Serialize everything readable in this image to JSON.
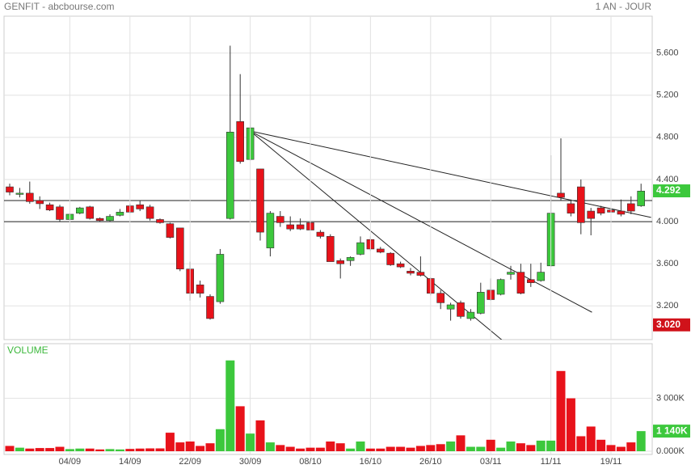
{
  "chart_data": [
    {
      "type": "candlestick",
      "title": "GENFIT - abcbourse.com",
      "subtitle": "1 AN - JOUR",
      "categories": [
        null,
        null,
        null,
        null,
        null,
        null,
        "04/09",
        null,
        null,
        null,
        null,
        null,
        "14/09",
        null,
        null,
        null,
        null,
        null,
        "22/09",
        null,
        null,
        null,
        null,
        null,
        "30/09",
        null,
        null,
        null,
        null,
        null,
        "08/10",
        null,
        null,
        null,
        null,
        null,
        "16/10",
        null,
        null,
        null,
        null,
        null,
        "26/10",
        null,
        null,
        null,
        null,
        null,
        "03/11",
        null,
        null,
        null,
        null,
        null,
        "11/11",
        null,
        null,
        null,
        null,
        null,
        "19/11",
        null,
        null,
        null
      ],
      "open": [
        4.33,
        4.27,
        4.27,
        4.2,
        4.16,
        4.14,
        4.02,
        4.08,
        4.14,
        4.03,
        4.01,
        4.06,
        4.15,
        4.16,
        4.14,
        4.02,
        3.98,
        3.94,
        3.55,
        3.4,
        3.29,
        3.24,
        4.03,
        4.95,
        4.59,
        4.5,
        3.75,
        4.05,
        3.97,
        3.97,
        3.99,
        3.9,
        3.86,
        3.63,
        3.63,
        3.69,
        3.83,
        3.74,
        3.7,
        3.6,
        3.53,
        3.52,
        3.46,
        3.32,
        3.17,
        3.23,
        3.08,
        3.13,
        3.35,
        3.31,
        3.5,
        3.52,
        3.45,
        3.44,
        3.58,
        4.27,
        4.17,
        4.33,
        4.1,
        4.13,
        4.11,
        4.1,
        4.17,
        4.15
      ],
      "high": [
        4.36,
        4.32,
        4.38,
        4.24,
        4.18,
        4.16,
        4.08,
        4.14,
        4.15,
        4.04,
        4.07,
        4.12,
        4.17,
        4.2,
        4.16,
        4.03,
        3.99,
        3.94,
        3.62,
        3.44,
        3.31,
        3.74,
        5.67,
        5.4,
        5.2,
        4.5,
        4.1,
        4.1,
        4.05,
        4.03,
        4.05,
        3.92,
        3.88,
        3.65,
        3.67,
        3.86,
        3.86,
        3.76,
        3.71,
        3.62,
        3.56,
        3.67,
        3.47,
        3.35,
        3.23,
        3.25,
        3.17,
        3.42,
        3.46,
        3.46,
        3.58,
        3.6,
        3.6,
        3.61,
        4.63,
        4.79,
        4.21,
        4.4,
        4.13,
        4.15,
        4.13,
        4.21,
        4.24,
        4.36
      ],
      "low": [
        4.25,
        4.23,
        4.17,
        4.12,
        4.1,
        4.0,
        4.01,
        4.07,
        4.02,
        4.0,
        4.0,
        4.05,
        4.08,
        4.1,
        4.01,
        3.98,
        3.84,
        3.53,
        3.25,
        3.28,
        3.07,
        3.22,
        4.02,
        4.55,
        4.58,
        3.82,
        3.67,
        3.95,
        3.91,
        3.92,
        3.88,
        3.84,
        3.62,
        3.46,
        3.58,
        3.68,
        3.72,
        3.7,
        3.58,
        3.56,
        3.49,
        3.48,
        3.3,
        3.17,
        3.06,
        3.08,
        3.06,
        3.12,
        3.25,
        3.3,
        3.45,
        3.31,
        3.38,
        3.43,
        3.57,
        4.2,
        4.05,
        3.88,
        3.87,
        4.06,
        4.06,
        4.05,
        4.07,
        4.14
      ],
      "close": [
        4.28,
        4.27,
        4.19,
        4.17,
        4.11,
        4.02,
        4.07,
        4.13,
        4.03,
        4.01,
        4.05,
        4.09,
        4.09,
        4.12,
        4.03,
        3.99,
        3.85,
        3.55,
        3.32,
        3.32,
        3.08,
        3.69,
        4.85,
        4.57,
        4.89,
        3.9,
        4.08,
        3.99,
        3.93,
        3.93,
        3.92,
        3.86,
        3.62,
        3.6,
        3.66,
        3.8,
        3.74,
        3.71,
        3.59,
        3.57,
        3.51,
        3.49,
        3.32,
        3.23,
        3.21,
        3.1,
        3.14,
        3.33,
        3.26,
        3.45,
        3.52,
        3.32,
        3.42,
        3.52,
        4.08,
        4.23,
        4.08,
        3.99,
        4.03,
        4.08,
        4.09,
        4.07,
        4.1,
        4.29
      ],
      "up_color": "#3cc83c",
      "down_color": "#e8121a",
      "ylim": [
        2.88,
        5.95
      ],
      "yticks": [
        {
          "value": 3.2,
          "label": "3.200"
        },
        {
          "value": 3.6,
          "label": "3.600"
        },
        {
          "value": 4.0,
          "label": "4.000"
        },
        {
          "value": 4.4,
          "label": "4.400"
        },
        {
          "value": 4.8,
          "label": "4.800"
        },
        {
          "value": 5.2,
          "label": "5.200"
        },
        {
          "value": 5.6,
          "label": "5.600"
        }
      ],
      "grid": true,
      "hlines": [
        4.2,
        4.0
      ],
      "trendlines": [
        {
          "from": [
            24,
            4.86
          ],
          "to": [
            64,
            4.04
          ]
        },
        {
          "from": [
            24,
            4.86
          ],
          "to": [
            58.1,
            3.14
          ]
        },
        {
          "from": [
            24,
            4.86
          ],
          "to": [
            49.2,
            2.87
          ]
        }
      ],
      "price_markers": [
        {
          "value": 4.292,
          "color": "#3cc83c"
        },
        {
          "value": 3.02,
          "label": "3.020",
          "color": "#d0121a"
        }
      ]
    },
    {
      "type": "bar",
      "title": "VOLUME",
      "values": [
        300,
        200,
        150,
        180,
        180,
        250,
        120,
        150,
        150,
        100,
        120,
        100,
        130,
        150,
        160,
        160,
        1050,
        500,
        550,
        300,
        450,
        1250,
        5150,
        2550,
        1000,
        1750,
        500,
        350,
        250,
        150,
        200,
        200,
        550,
        450,
        150,
        550,
        150,
        150,
        250,
        250,
        200,
        300,
        350,
        400,
        550,
        900,
        250,
        250,
        650,
        200,
        550,
        450,
        350,
        600,
        600,
        4550,
        3000,
        850,
        1400,
        650,
        350,
        250,
        500,
        1140
      ],
      "ylim": [
        0,
        6100
      ],
      "yticks": [
        {
          "value": 0,
          "label": "0.000K"
        },
        {
          "value": 3000,
          "label": "3 000K"
        }
      ],
      "grid": true,
      "last_marker": {
        "value": 1140,
        "label": "1 140K",
        "color": "#3cc83c"
      }
    }
  ]
}
